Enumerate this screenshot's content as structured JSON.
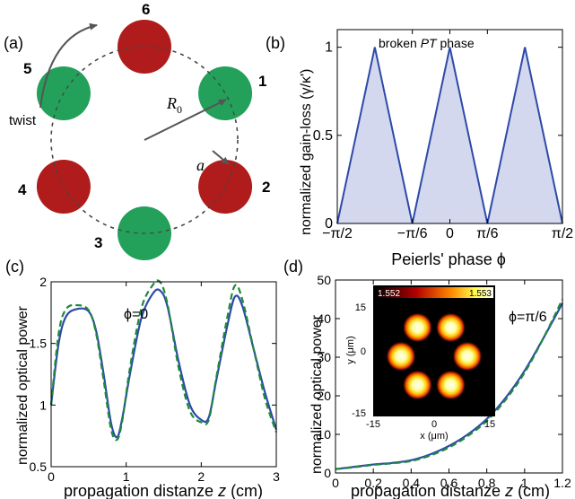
{
  "panel_a": {
    "label": "(a)",
    "twist_label": "twist",
    "R0_label": "R",
    "R0_sub": "0",
    "a_label": "a",
    "sites": [
      {
        "n": "1",
        "color": "green"
      },
      {
        "n": "2",
        "color": "red"
      },
      {
        "n": "3",
        "color": "green"
      },
      {
        "n": "4",
        "color": "red"
      },
      {
        "n": "5",
        "color": "green"
      },
      {
        "n": "6",
        "color": "red"
      }
    ],
    "colors": {
      "red": "#b01c1c",
      "green": "#23a05a"
    }
  },
  "panel_b": {
    "label": "(b)",
    "annotation_pre": "broken ",
    "annotation_it": "PT",
    "annotation_post": " phase",
    "ylabel": "normalized gain-loss (γ/κ')",
    "xlabel": "Peierls' phase ϕ",
    "xticks": [
      "−π/2",
      "−π/6",
      "0",
      "π/6",
      "π/2"
    ],
    "yticks": [
      "0",
      "0.5",
      "1"
    ]
  },
  "panel_c": {
    "label": "(c)",
    "annotation": "ϕ=0",
    "ylabel": "normalized optical power",
    "xlabel_pre": "propagation distanze ",
    "xlabel_it": "z",
    "xlabel_post": " (cm)",
    "xticks": [
      "0",
      "1",
      "2",
      "3"
    ],
    "yticks": [
      "0.5",
      "1",
      "1.5",
      "2"
    ]
  },
  "panel_d": {
    "label": "(d)",
    "annotation": "ϕ=π/6",
    "ylabel": "normalized optical power",
    "xlabel_pre": "propagation distanze ",
    "xlabel_it": "z",
    "xlabel_post": " (cm)",
    "xticks": [
      "0",
      "0.2",
      "0.4",
      "0.6",
      "0.8",
      "1",
      "1.2"
    ],
    "yticks": [
      "0",
      "10",
      "20",
      "30",
      "40",
      "50"
    ],
    "inset": {
      "colorbar_min": "1.552",
      "colorbar_max": "1.553",
      "xlabel": "x (μm)",
      "ylabel": "y (μm)",
      "xticks": [
        "-15",
        "0",
        "15"
      ],
      "yticks": [
        "15",
        "0",
        "-15"
      ]
    }
  },
  "colors": {
    "line": "#2d4aa8",
    "dashed": "#1e8a3c",
    "fill": "#d4d8ee"
  },
  "chart_data": [
    {
      "type": "area",
      "title": "",
      "xlabel": "Peierls' phase ϕ",
      "ylabel": "normalized gain-loss (γ/κ')",
      "xlim": [
        -1.5708,
        1.5708
      ],
      "ylim": [
        0,
        1.1
      ],
      "x": [
        -1.5708,
        -1.0472,
        -0.5236,
        0,
        0.5236,
        1.0472,
        1.5708
      ],
      "values": [
        0,
        1,
        0,
        1,
        0,
        1,
        0
      ]
    },
    {
      "type": "line",
      "title": "",
      "xlabel": "propagation distanze z (cm)",
      "ylabel": "normalized optical power",
      "xlim": [
        0,
        3
      ],
      "ylim": [
        0.5,
        2
      ],
      "x": [
        0,
        0.1,
        0.2,
        0.35,
        0.5,
        0.6,
        0.7,
        0.8,
        0.88,
        0.95,
        1.05,
        1.2,
        1.35,
        1.45,
        1.55,
        1.7,
        1.85,
        2.0,
        2.1,
        2.2,
        2.35,
        2.45,
        2.55,
        2.7,
        2.85,
        3.0
      ],
      "series": [
        {
          "style": "solid",
          "values": [
            1.0,
            1.5,
            1.72,
            1.78,
            1.76,
            1.6,
            1.25,
            0.85,
            0.74,
            0.9,
            1.25,
            1.7,
            1.9,
            1.93,
            1.8,
            1.35,
            1.0,
            0.88,
            0.9,
            1.2,
            1.65,
            1.88,
            1.8,
            1.45,
            1.1,
            0.8
          ]
        },
        {
          "style": "dashed",
          "values": [
            1.0,
            1.58,
            1.78,
            1.81,
            1.77,
            1.58,
            1.2,
            0.8,
            0.72,
            0.88,
            1.3,
            1.78,
            1.97,
            2.0,
            1.82,
            1.3,
            0.95,
            0.86,
            0.88,
            1.22,
            1.72,
            1.97,
            1.85,
            1.45,
            1.05,
            0.78
          ]
        }
      ]
    },
    {
      "type": "line",
      "title": "",
      "xlabel": "propagation distanze z (cm)",
      "ylabel": "normalized optical power",
      "xlim": [
        0,
        1.2
      ],
      "ylim": [
        0,
        50
      ],
      "x": [
        0,
        0.1,
        0.2,
        0.3,
        0.4,
        0.5,
        0.6,
        0.7,
        0.8,
        0.9,
        1.0,
        1.1,
        1.2
      ],
      "series": [
        {
          "style": "solid",
          "values": [
            1,
            1.6,
            2.2,
            2.6,
            3.3,
            4.8,
            7,
            10,
            14,
            19.5,
            26.5,
            35,
            44
          ]
        },
        {
          "style": "dashed",
          "values": [
            1,
            1.5,
            2.1,
            2.5,
            3.1,
            4.5,
            6.6,
            9.6,
            13.5,
            19,
            26,
            35,
            45
          ]
        }
      ]
    }
  ]
}
